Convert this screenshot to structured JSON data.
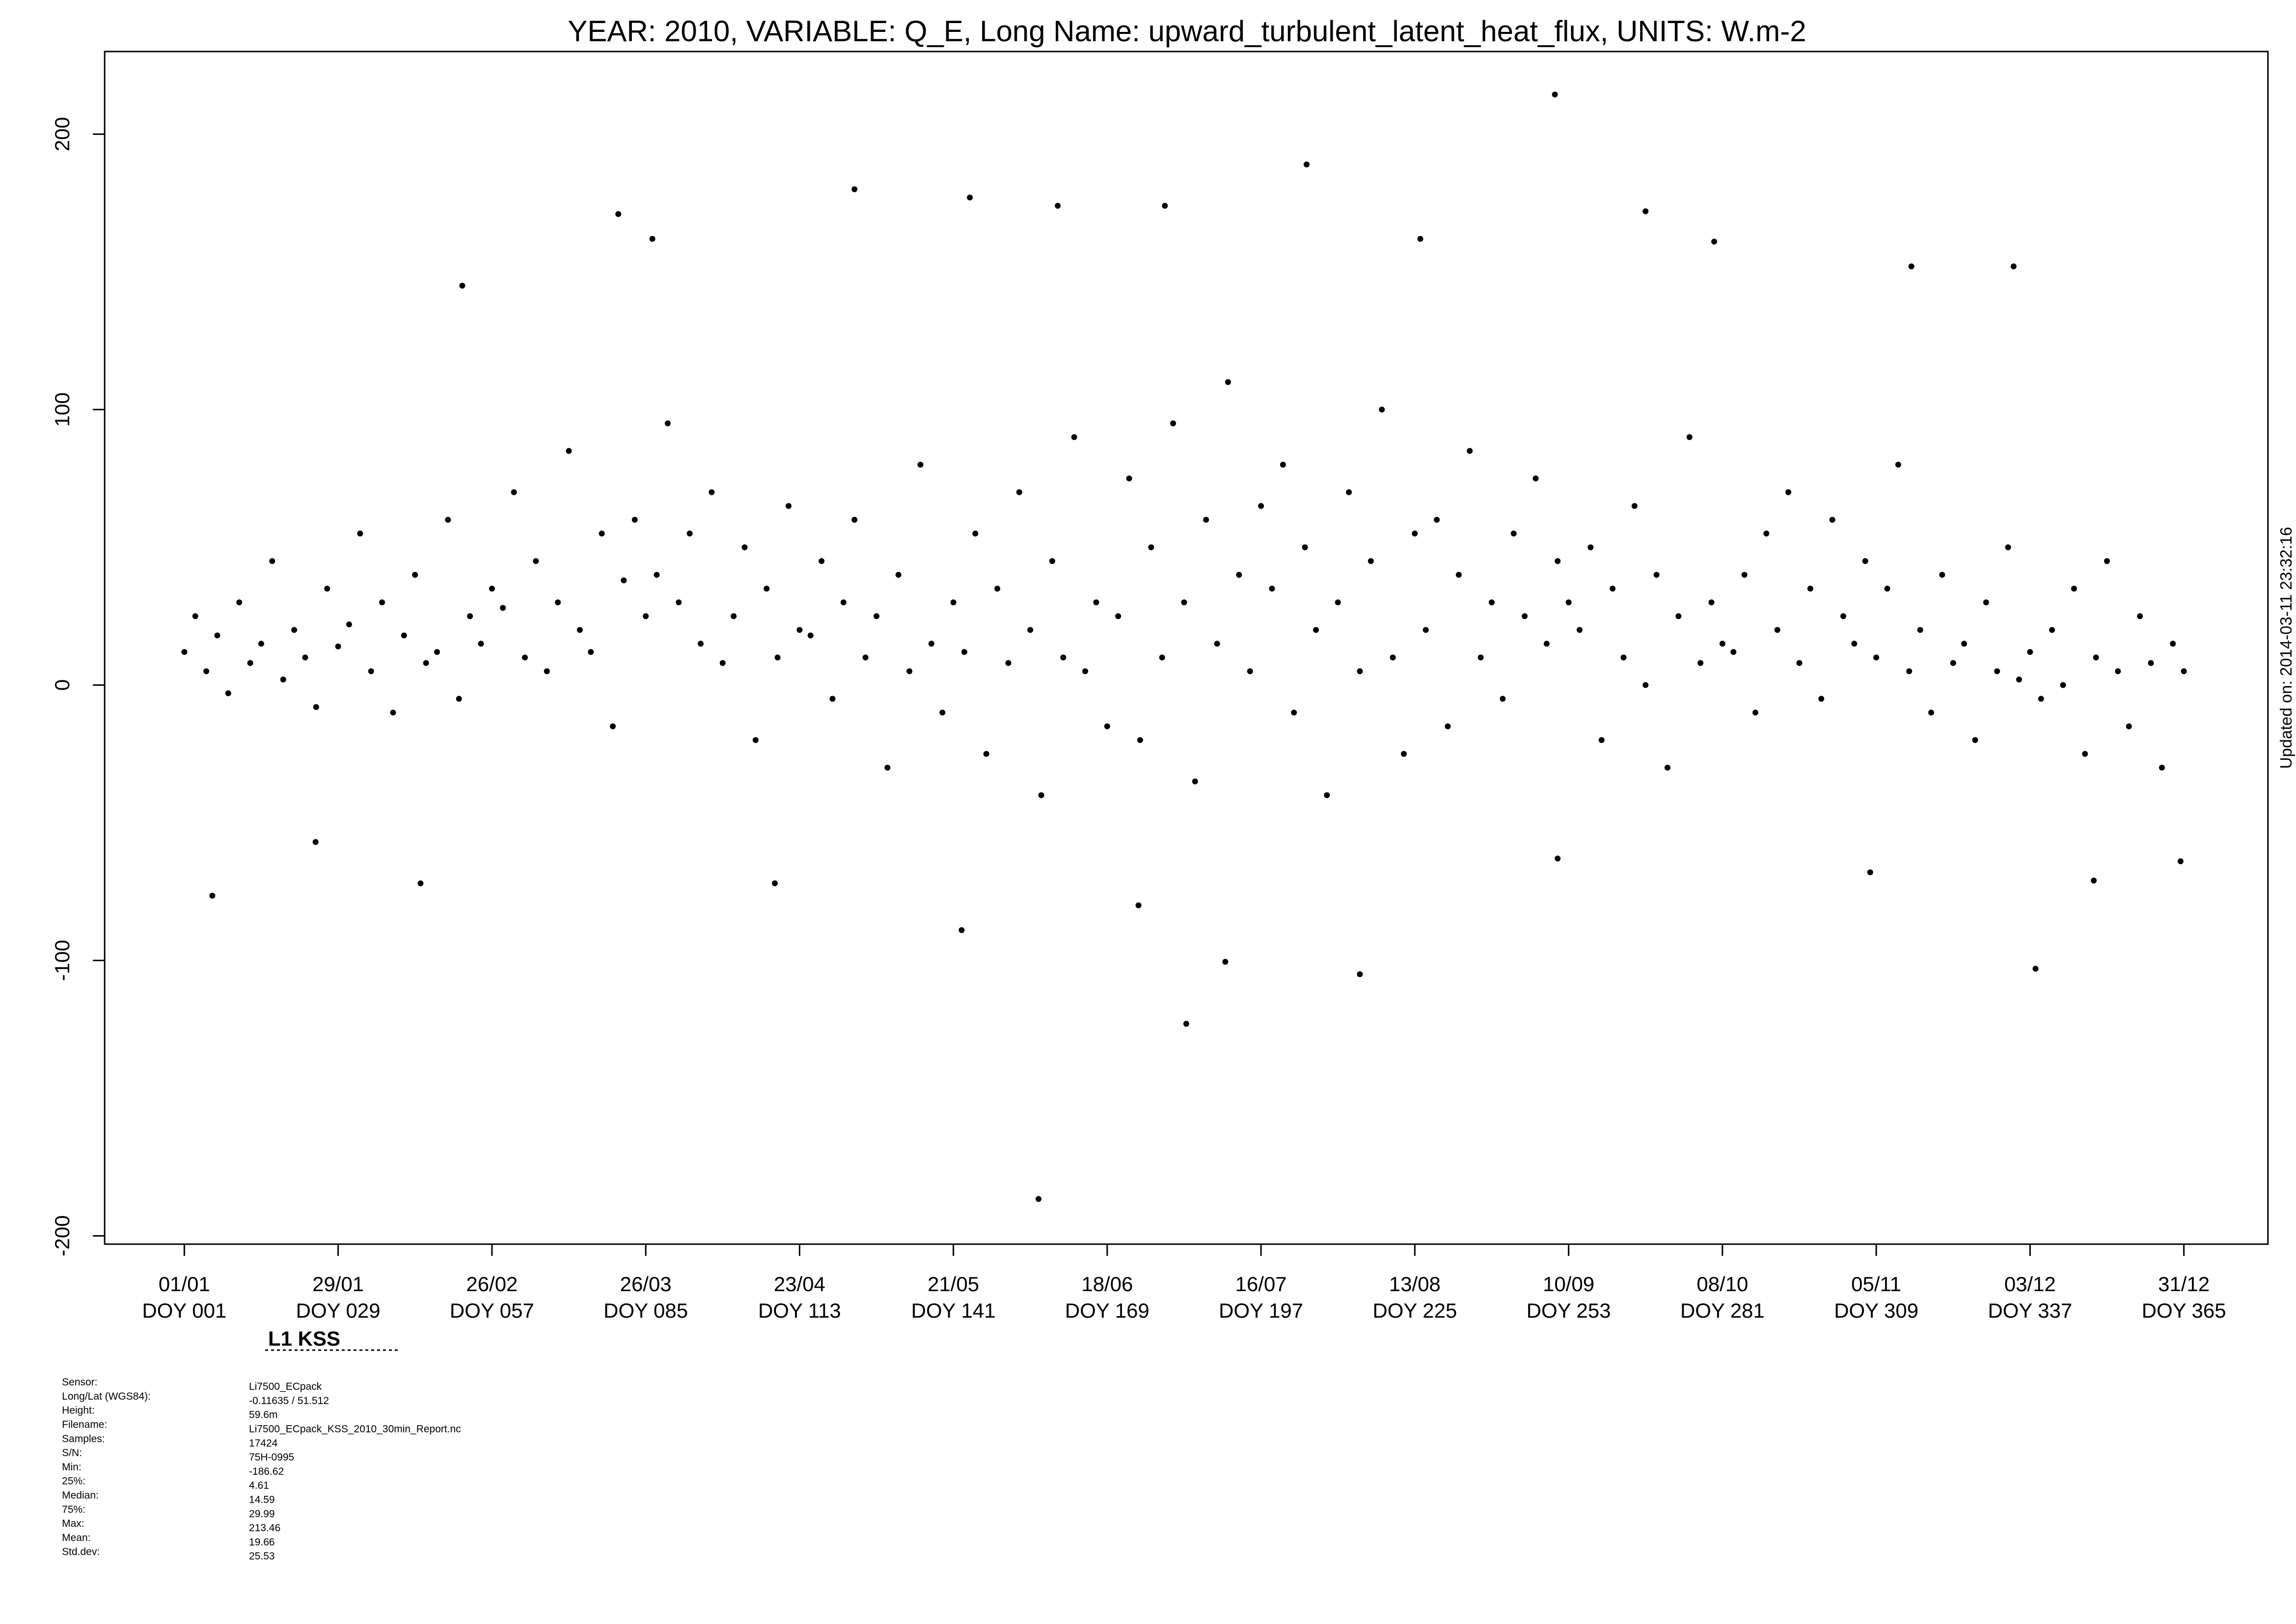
{
  "chart_data": {
    "type": "scatter",
    "title": "YEAR: 2010, VARIABLE: Q_E, Long Name: upward_turbulent_latent_heat_flux, UNITS: W.m-2",
    "side_note": "Updated on: 2014-03-11 23:32:16",
    "station": "L1 KSS",
    "color": "#000000",
    "xlim": [
      -13.5,
      380.3
    ],
    "ylim": [
      -203,
      230
    ],
    "xticks": [
      {
        "value": 1,
        "label": [
          "01/01",
          "DOY 001"
        ]
      },
      {
        "value": 29,
        "label": [
          "29/01",
          "DOY 029"
        ]
      },
      {
        "value": 57,
        "label": [
          "26/02",
          "DOY 057"
        ]
      },
      {
        "value": 85,
        "label": [
          "26/03",
          "DOY 085"
        ]
      },
      {
        "value": 113,
        "label": [
          "23/04",
          "DOY 113"
        ]
      },
      {
        "value": 141,
        "label": [
          "21/05",
          "DOY 141"
        ]
      },
      {
        "value": 169,
        "label": [
          "18/06",
          "DOY 169"
        ]
      },
      {
        "value": 197,
        "label": [
          "16/07",
          "DOY 197"
        ]
      },
      {
        "value": 225,
        "label": [
          "13/08",
          "DOY 225"
        ]
      },
      {
        "value": 253,
        "label": [
          "10/09",
          "DOY 253"
        ]
      },
      {
        "value": 281,
        "label": [
          "08/10",
          "DOY 281"
        ]
      },
      {
        "value": 309,
        "label": [
          "05/11",
          "DOY 309"
        ]
      },
      {
        "value": 337,
        "label": [
          "03/12",
          "DOY 337"
        ]
      },
      {
        "value": 365,
        "label": [
          "31/12",
          "DOY 365"
        ]
      }
    ],
    "yticks": [
      -200,
      -100,
      0,
      100,
      200
    ],
    "x": [
      1,
      3,
      5,
      7,
      9,
      11,
      13,
      15,
      17,
      19,
      21,
      23,
      25,
      27,
      29,
      31,
      33,
      35,
      37,
      39,
      41,
      43,
      45,
      47,
      49,
      51,
      53,
      55,
      57,
      59,
      61,
      63,
      65,
      67,
      69,
      71,
      73,
      75,
      77,
      79,
      81,
      83,
      85,
      87,
      89,
      91,
      93,
      95,
      97,
      99,
      101,
      103,
      105,
      107,
      109,
      111,
      113,
      115,
      117,
      119,
      121,
      123,
      125,
      127,
      129,
      131,
      133,
      135,
      137,
      139,
      141,
      143,
      145,
      147,
      149,
      151,
      153,
      155,
      157,
      159,
      161,
      163,
      165,
      167,
      169,
      171,
      173,
      175,
      177,
      179,
      181,
      183,
      185,
      187,
      189,
      191,
      193,
      195,
      197,
      199,
      201,
      203,
      205,
      207,
      209,
      211,
      213,
      215,
      217,
      219,
      221,
      223,
      225,
      227,
      229,
      231,
      233,
      235,
      237,
      239,
      241,
      243,
      245,
      247,
      249,
      251,
      253,
      255,
      257,
      259,
      261,
      263,
      265,
      267,
      269,
      271,
      273,
      275,
      277,
      279,
      281,
      283,
      285,
      287,
      289,
      291,
      293,
      295,
      297,
      299,
      301,
      303,
      305,
      307,
      309,
      311,
      313,
      315,
      317,
      319,
      321,
      323,
      325,
      327,
      329,
      331,
      333,
      335,
      337,
      339,
      341,
      343,
      345,
      347,
      349,
      351,
      353,
      355,
      357,
      359,
      361,
      363,
      365,
      6.1,
      156.5,
      183.4,
      190.5,
      215,
      338,
      250.5,
      205.3,
      123,
      144,
      160,
      179.5,
      226,
      86.2,
      279.5,
      267,
      80,
      334,
      315.4,
      51.6,
      142.5,
      108.5,
      307.9,
      251,
      348.6,
      364.4,
      24.9,
      44,
      174.7
    ],
    "values": [
      12,
      25,
      5,
      18,
      -3,
      30,
      8,
      15,
      45,
      2,
      20,
      10,
      -8,
      35,
      14,
      22,
      55,
      5,
      30,
      -10,
      18,
      40,
      8,
      12,
      60,
      -5,
      25,
      15,
      35,
      28,
      70,
      10,
      45,
      5,
      30,
      85,
      20,
      12,
      55,
      -15,
      38,
      60,
      25,
      40,
      95,
      30,
      55,
      15,
      70,
      8,
      25,
      50,
      -20,
      35,
      10,
      65,
      20,
      18,
      45,
      -5,
      30,
      60,
      10,
      25,
      -30,
      40,
      5,
      80,
      15,
      -10,
      30,
      12,
      55,
      -25,
      35,
      8,
      70,
      20,
      -40,
      45,
      10,
      90,
      5,
      30,
      -15,
      25,
      75,
      -20,
      50,
      10,
      95,
      30,
      -35,
      60,
      15,
      110,
      40,
      5,
      65,
      35,
      80,
      -10,
      50,
      20,
      -40,
      30,
      70,
      5,
      45,
      100,
      10,
      -25,
      55,
      20,
      60,
      -15,
      40,
      85,
      10,
      30,
      -5,
      55,
      25,
      75,
      15,
      45,
      30,
      20,
      50,
      -20,
      35,
      10,
      65,
      0,
      40,
      -30,
      25,
      90,
      8,
      30,
      15,
      12,
      40,
      -10,
      55,
      20,
      70,
      8,
      35,
      -5,
      60,
      25,
      15,
      45,
      10,
      35,
      80,
      5,
      20,
      -10,
      40,
      8,
      15,
      -20,
      30,
      5,
      50,
      2,
      12,
      -5,
      20,
      0,
      35,
      -25,
      10,
      45,
      5,
      -15,
      25,
      8,
      -30,
      15,
      5,
      -76.5,
      -186.6,
      -123,
      -100.5,
      -105,
      -103,
      214.4,
      189,
      180,
      177,
      174,
      174,
      162,
      162,
      161,
      172,
      171,
      152,
      152,
      145,
      -89,
      -72,
      -68,
      -63,
      -71,
      -64,
      -57,
      -72,
      -80
    ],
    "info": [
      {
        "key": "Sensor:",
        "value": "Li7500_ECpack"
      },
      {
        "key": "Long/Lat (WGS84):",
        "value": "-0.11635 / 51.512"
      },
      {
        "key": "Height:",
        "value": "59.6m"
      },
      {
        "key": "Filename:",
        "value": "Li7500_ECpack_KSS_2010_30min_Report.nc"
      },
      {
        "key": "Samples:",
        "value": "17424"
      },
      {
        "key": "S/N:",
        "value": "75H-0995"
      },
      {
        "key": "Min:",
        "value": "-186.62"
      },
      {
        "key": "25%:",
        "value": "4.61"
      },
      {
        "key": "Median:",
        "value": "14.59"
      },
      {
        "key": "75%:",
        "value": "29.99"
      },
      {
        "key": "Max:",
        "value": "213.46"
      },
      {
        "key": "Mean:",
        "value": "19.66"
      },
      {
        "key": "Std.dev:",
        "value": "25.53"
      }
    ]
  }
}
